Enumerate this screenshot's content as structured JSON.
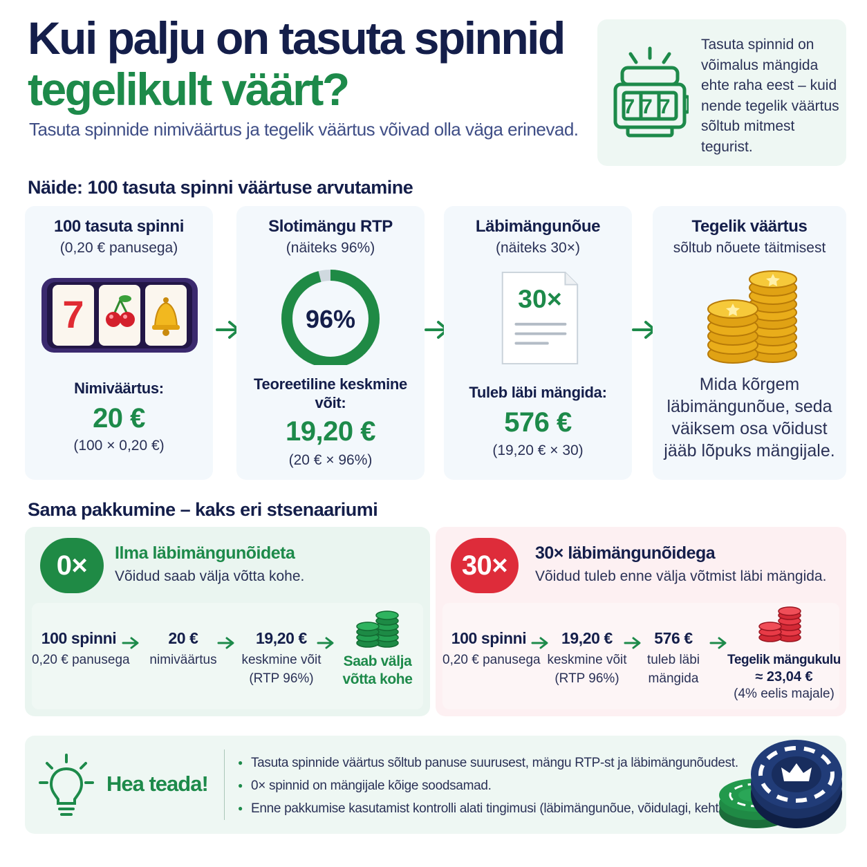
{
  "header": {
    "title_line1": "Kui palju on tasuta spinnid",
    "title_line2": "tegelikult väärt?",
    "subtitle": "Tasuta spinnide nimiväärtus ja tegelik väärtus võivad olla väga erinevad."
  },
  "info_box": {
    "icon": "slot-machine-777-icon",
    "reel_text": "777",
    "text": "Tasuta spinnid on võimalus mängida ehte raha eest – kuid nende tegelik väärtus sõltub mitmest tegurist."
  },
  "example": {
    "heading": "Näide: 100 tasuta spinni väärtuse arvutamine",
    "steps": [
      {
        "title": "100 tasuta spinni",
        "subtitle": "(0,20 € panusega)",
        "icon": "slot-reels-icon",
        "label": "Nimiväärtus:",
        "value": "20 €",
        "note": "(100 × 0,20 €)"
      },
      {
        "title": "Slotimängu RTP",
        "subtitle": "(näiteks 96%)",
        "icon": "rtp-ring-icon",
        "ring_percent": 96,
        "ring_label": "96%",
        "label": "Teoreetiline keskmine võit:",
        "value": "19,20 €",
        "note": "(20 € × 96%)"
      },
      {
        "title": "Läbimängunõue",
        "subtitle": "(näiteks 30×)",
        "icon": "document-icon",
        "doc_label": "30×",
        "label": "Tuleb läbi mängida:",
        "value": "576 €",
        "note": "(19,20 € × 30)"
      },
      {
        "title": "Tegelik väärtus",
        "subtitle": "sõltub nõuete täitmisest",
        "icon": "gold-coins-icon",
        "description": "Mida kõrgem läbimängunõue, seda väiksem osa võidust jääb lõpuks mängijale."
      }
    ]
  },
  "scenarios": {
    "heading": "Sama pakkumine – kaks eri stsenaariumi",
    "no_wagering": {
      "badge": "0×",
      "title": "Ilma läbimängunõideta",
      "subtitle": "Võidud saab välja võtta kohe.",
      "flow": [
        {
          "main": "100 spinni",
          "sub": "0,20 € panusega"
        },
        {
          "main": "20 €",
          "sub": "nimiväärtus"
        },
        {
          "main": "19,20 €",
          "sub": "keskmine võit\n(RTP 96%)"
        }
      ],
      "result": "Saab välja\nvõtta kohe",
      "result_icon": "green-chips-icon"
    },
    "with_wagering": {
      "badge": "30×",
      "title": "30× läbimängunõidega",
      "subtitle": "Võidud tuleb enne välja võtmist läbi mängida.",
      "flow": [
        {
          "main": "100 spinni",
          "sub": "0,20 € panusega"
        },
        {
          "main": "19,20 €",
          "sub": "keskmine võit\n(RTP 96%)"
        },
        {
          "main": "576 €",
          "sub": "tuleb läbi\nmängida"
        }
      ],
      "result_title": "Tegelik mängukulu",
      "result_value": "≈ 23,04 €",
      "result_note": "(4% eelis majale)",
      "result_icon": "red-chips-icon"
    }
  },
  "tip": {
    "title": "Hea teada!",
    "icon": "lightbulb-icon",
    "items": [
      "Tasuta spinnide väärtus sõltub panuse suurusest, mängu RTP-st ja läbimängunõudest.",
      "0× spinnid on mängijale kõige soodsamad.",
      "Enne pakkumise kasutamist kontrolli alati tingimusi (läbimängunõue, võidulagi, kehtivusaeg)."
    ],
    "decor_icon": "poker-chips-crown-icon"
  },
  "colors": {
    "navy": "#141e4a",
    "green": "#1d8a4a",
    "red": "#de2c3a",
    "gold": "#f2b81f"
  }
}
